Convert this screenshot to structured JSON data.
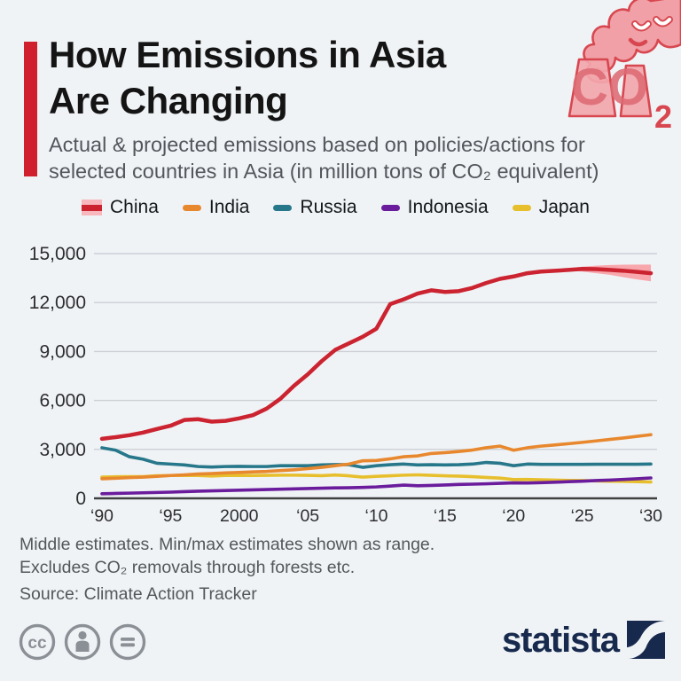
{
  "header": {
    "title_line1": "How Emissions in Asia",
    "title_line2": "Are Changing",
    "subtitle_line1": "Actual & projected emissions based on policies/actions for",
    "subtitle_line2": "selected countries in Asia (in million tons of CO₂ equivalent)",
    "accent_color": "#d0202e",
    "co2_icon_label": "CO",
    "co2_icon_sub": "2"
  },
  "legend": [
    {
      "label": "China",
      "color": "#cb2330",
      "band_color": "#f7b7bc",
      "type": "band"
    },
    {
      "label": "India",
      "color": "#e8882e",
      "type": "line"
    },
    {
      "label": "Russia",
      "color": "#27778a",
      "type": "line"
    },
    {
      "label": "Indonesia",
      "color": "#6a1c9c",
      "type": "line"
    },
    {
      "label": "Japan",
      "color": "#e7bf2c",
      "type": "line"
    }
  ],
  "chart_data": {
    "type": "line",
    "title": "How Emissions in Asia Are Changing",
    "xlabel": "",
    "ylabel": "million tons of CO₂ equivalent",
    "ylim": [
      0,
      15000
    ],
    "grid": true,
    "legend_position": "top",
    "x": [
      1990,
      1991,
      1992,
      1993,
      1994,
      1995,
      1996,
      1997,
      1998,
      1999,
      2000,
      2001,
      2002,
      2003,
      2004,
      2005,
      2006,
      2007,
      2008,
      2009,
      2010,
      2011,
      2012,
      2013,
      2014,
      2015,
      2016,
      2017,
      2018,
      2019,
      2020,
      2021,
      2022,
      2023,
      2024,
      2025,
      2026,
      2027,
      2028,
      2029,
      2030
    ],
    "x_ticks": [
      {
        "year": 1990,
        "label": "‘90"
      },
      {
        "year": 1995,
        "label": "‘95"
      },
      {
        "year": 2000,
        "label": "2000"
      },
      {
        "year": 2005,
        "label": "‘05"
      },
      {
        "year": 2010,
        "label": "‘10"
      },
      {
        "year": 2015,
        "label": "‘15"
      },
      {
        "year": 2020,
        "label": "‘20"
      },
      {
        "year": 2025,
        "label": "‘25"
      },
      {
        "year": 2030,
        "label": "‘30"
      }
    ],
    "y_ticks": [
      0,
      3000,
      6000,
      9000,
      12000,
      15000
    ],
    "y_tick_labels": [
      "0",
      "3,000",
      "6,000",
      "9,000",
      "12,000",
      "15,000"
    ],
    "series": [
      {
        "name": "China",
        "color": "#cb2330",
        "width": 4.5,
        "values": [
          3650,
          3750,
          3870,
          4030,
          4250,
          4450,
          4800,
          4850,
          4700,
          4750,
          4900,
          5100,
          5500,
          6100,
          6900,
          7600,
          8400,
          9100,
          9500,
          9900,
          10400,
          11900,
          12200,
          12550,
          12750,
          12650,
          12700,
          12900,
          13200,
          13450,
          13600,
          13800,
          13900,
          13950,
          14000,
          14060,
          14050,
          14000,
          13950,
          13880,
          13800
        ],
        "band": {
          "color": "#f8a7ad",
          "years": [
            2024,
            2025,
            2026,
            2027,
            2028,
            2029,
            2030
          ],
          "min": [
            13950,
            13900,
            13800,
            13700,
            13550,
            13420,
            13300
          ],
          "max": [
            14080,
            14200,
            14260,
            14300,
            14320,
            14330,
            14330
          ]
        }
      },
      {
        "name": "India",
        "color": "#e8882e",
        "width": 3.6,
        "values": [
          1200,
          1230,
          1270,
          1300,
          1350,
          1400,
          1440,
          1490,
          1520,
          1560,
          1590,
          1620,
          1650,
          1700,
          1750,
          1820,
          1900,
          2000,
          2100,
          2300,
          2320,
          2420,
          2550,
          2600,
          2750,
          2800,
          2870,
          2960,
          3100,
          3200,
          2950,
          3100,
          3200,
          3270,
          3350,
          3430,
          3520,
          3610,
          3700,
          3800,
          3900
        ]
      },
      {
        "name": "Russia",
        "color": "#27778a",
        "width": 3.6,
        "values": [
          3100,
          2950,
          2550,
          2400,
          2150,
          2100,
          2050,
          1950,
          1920,
          1950,
          1960,
          1950,
          1950,
          2000,
          2000,
          2000,
          2050,
          2070,
          2060,
          1900,
          2000,
          2060,
          2100,
          2050,
          2060,
          2050,
          2060,
          2100,
          2200,
          2150,
          2000,
          2100,
          2080,
          2080,
          2080,
          2080,
          2090,
          2090,
          2090,
          2090,
          2100
        ]
      },
      {
        "name": "Indonesia",
        "color": "#6a1c9c",
        "width": 3.6,
        "values": [
          280,
          300,
          320,
          340,
          360,
          380,
          410,
          440,
          460,
          480,
          500,
          520,
          540,
          560,
          580,
          600,
          620,
          640,
          650,
          670,
          700,
          750,
          810,
          770,
          790,
          820,
          850,
          870,
          890,
          920,
          950,
          940,
          960,
          990,
          1020,
          1050,
          1090,
          1120,
          1160,
          1200,
          1250
        ]
      },
      {
        "name": "Japan",
        "color": "#e7bf2c",
        "width": 3.6,
        "values": [
          1300,
          1320,
          1330,
          1330,
          1380,
          1400,
          1410,
          1400,
          1370,
          1400,
          1410,
          1400,
          1410,
          1420,
          1420,
          1410,
          1390,
          1430,
          1380,
          1300,
          1350,
          1380,
          1420,
          1440,
          1410,
          1380,
          1360,
          1330,
          1280,
          1240,
          1150,
          1160,
          1140,
          1120,
          1100,
          1090,
          1070,
          1050,
          1040,
          1020,
          1000
        ]
      }
    ],
    "draw_order": [
      "Japan",
      "Russia",
      "Indonesia",
      "India",
      "China"
    ]
  },
  "notes": {
    "line1": "Middle estimates. Min/max estimates shown as range.",
    "line2": "Excludes CO₂ removals through forests etc.",
    "source": "Source: Climate Action Tracker"
  },
  "footer": {
    "brand": "statista",
    "cc_label": "cc"
  }
}
